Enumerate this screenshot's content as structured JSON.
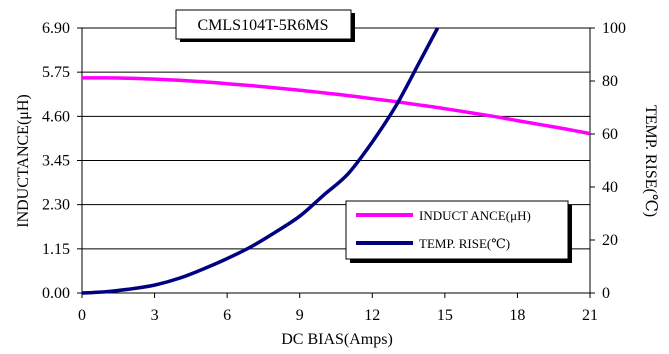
{
  "chart_data": {
    "type": "line",
    "title": "CMLS104T-5R6MS",
    "xlabel": "DC BIAS(Amps)",
    "ylabel_left": "INDUCTANCE(μH)",
    "ylabel_right": "TEMP. RISE(℃)",
    "xlim": [
      0,
      21
    ],
    "ylim_left": [
      0,
      6.9
    ],
    "ylim_right": [
      0,
      100
    ],
    "x_ticks": [
      "0",
      "3",
      "6",
      "9",
      "12",
      "15",
      "18",
      "21"
    ],
    "y_left_ticks": [
      "0.00",
      "1.15",
      "2.30",
      "3.45",
      "4.60",
      "5.75",
      "6.90"
    ],
    "y_right_ticks": [
      "0",
      "20",
      "40",
      "60",
      "80",
      "100"
    ],
    "grid": "horizontal",
    "legend_position": "lower-right",
    "series": [
      {
        "name": "INDUCT ANCE(μH)",
        "axis": "left",
        "color": "#ff00ff",
        "x": [
          0,
          1,
          2,
          3,
          4,
          5,
          6,
          7,
          8,
          9,
          10,
          11,
          12,
          13,
          14,
          15,
          16,
          17,
          18,
          19,
          20,
          21
        ],
        "values": [
          5.6,
          5.6,
          5.59,
          5.57,
          5.54,
          5.5,
          5.45,
          5.4,
          5.34,
          5.28,
          5.21,
          5.14,
          5.06,
          4.98,
          4.89,
          4.8,
          4.7,
          4.6,
          4.49,
          4.38,
          4.27,
          4.15
        ]
      },
      {
        "name": "TEMP. RISE(℃)",
        "axis": "right",
        "color": "#000080",
        "x": [
          0,
          1,
          2,
          3,
          4,
          5,
          6,
          7,
          8,
          9,
          10,
          11,
          12,
          13,
          14,
          14.7
        ],
        "values": [
          0,
          0.5,
          1.5,
          3,
          5.5,
          9,
          13,
          17.5,
          23,
          29,
          37,
          45,
          57,
          71,
          88,
          100
        ]
      }
    ]
  }
}
